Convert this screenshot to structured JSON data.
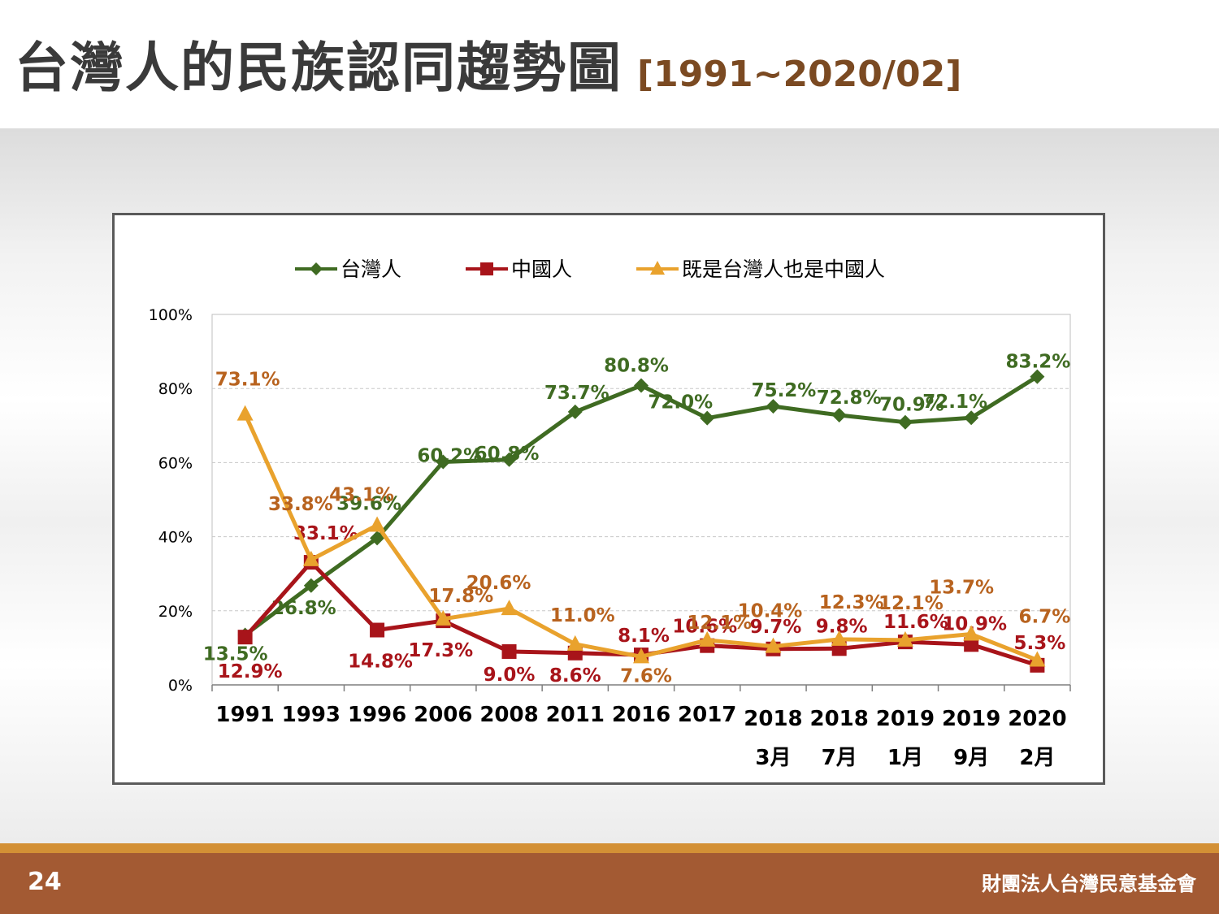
{
  "header": {
    "title": "台灣人的民族認同趨勢圖",
    "subtitle": "[1991~2020/02]"
  },
  "footer": {
    "page_number": "24",
    "organization": "財團法人台灣民意基金會"
  },
  "chart_data": {
    "type": "line",
    "legend_position": "top",
    "grid": true,
    "ylim": [
      0,
      100
    ],
    "y_ticks": [
      "0%",
      "20%",
      "40%",
      "60%",
      "80%",
      "100%"
    ],
    "y_tick_values": [
      0,
      20,
      40,
      60,
      80,
      100
    ],
    "categories": [
      [
        "1991"
      ],
      [
        "1993"
      ],
      [
        "1996"
      ],
      [
        "2006"
      ],
      [
        "2008"
      ],
      [
        "2011"
      ],
      [
        "2016"
      ],
      [
        "2017"
      ],
      [
        "2018",
        "3月"
      ],
      [
        "2018",
        "7月"
      ],
      [
        "2019",
        "1月"
      ],
      [
        "2019",
        "9月"
      ],
      [
        "2020",
        "2月"
      ]
    ],
    "series": [
      {
        "name": "台灣人",
        "color": "#3f6b22",
        "label_color": "#3f6b22",
        "marker": "diamond",
        "values": [
          13.5,
          26.8,
          39.6,
          60.2,
          60.8,
          73.7,
          80.8,
          72.0,
          75.2,
          72.8,
          70.9,
          72.1,
          83.2
        ],
        "labels": [
          "13.5%",
          "26.8%",
          "39.6%",
          "60.2%",
          "60.8%",
          "73.7%",
          "80.8%",
          "72.0%",
          "75.2%",
          "72.8%",
          "70.9%",
          "72.1%",
          "83.2%"
        ]
      },
      {
        "name": "中國人",
        "color": "#a8141a",
        "label_color": "#a8141a",
        "marker": "square",
        "values": [
          12.9,
          33.1,
          14.8,
          17.3,
          9.0,
          8.6,
          8.1,
          10.6,
          9.7,
          9.8,
          11.6,
          10.9,
          5.3
        ],
        "labels": [
          "12.9%",
          "33.1%",
          "14.8%",
          "17.3%",
          "9.0%",
          "8.6%",
          "8.1%",
          "10.6%",
          "9.7%",
          "9.8%",
          "11.6%",
          "10.9%",
          "5.3%"
        ]
      },
      {
        "name": "既是台灣人也是中國人",
        "color": "#e9a22d",
        "label_color": "#b8631f",
        "marker": "triangle",
        "values": [
          73.1,
          33.8,
          43.1,
          17.8,
          20.6,
          11.0,
          7.6,
          12.1,
          10.4,
          12.3,
          12.1,
          13.7,
          6.7
        ],
        "labels": [
          "73.1%",
          "33.8%",
          "43.1%",
          "17.8%",
          "20.6%",
          "11.0%",
          "7.6%",
          "12.1%",
          "10.4%",
          "12.3%",
          "12.1%",
          "13.7%",
          "6.7%"
        ]
      }
    ]
  }
}
